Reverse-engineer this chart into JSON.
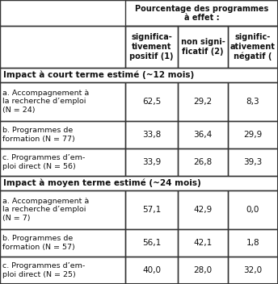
{
  "col_headers": [
    "significa-\ntivement\npositif (1)",
    "non signi-\nficatif (2)",
    "signific-\nativement\nnégatif ("
  ],
  "section1_header": "Impact à court terme estimé (~12 mois)",
  "section2_header": "Impact à moyen terme estimé (~24 mois)",
  "rows": [
    {
      "label": "a. Accompagnement à\nla recherche d’emploi\n(N = 24)",
      "values": [
        "62,5",
        "29,2",
        "8,3"
      ],
      "nlines": 3
    },
    {
      "label": "b. Programmes de\nformation (N = 77)",
      "values": [
        "33,8",
        "36,4",
        "29,9"
      ],
      "nlines": 2
    },
    {
      "label": "c. Programmes d’em-\nploi direct (N = 56)",
      "values": [
        "33,9",
        "26,8",
        "39,3"
      ],
      "nlines": 2
    },
    {
      "label": "a. Accompagnement à\nla recherche d’emploi\n(N = 7)",
      "values": [
        "57,1",
        "42,9",
        "0,0"
      ],
      "nlines": 3
    },
    {
      "label": "b. Programmes de\nformation (N = 57)",
      "values": [
        "56,1",
        "42,1",
        "1,8"
      ],
      "nlines": 2
    },
    {
      "label": "c. Programmes d’em-\nploi direct (N = 25)",
      "values": [
        "40,0",
        "28,0",
        "32,0"
      ],
      "nlines": 2
    }
  ],
  "border_color": "#333333",
  "text_color": "#111111",
  "lw": 1.0
}
